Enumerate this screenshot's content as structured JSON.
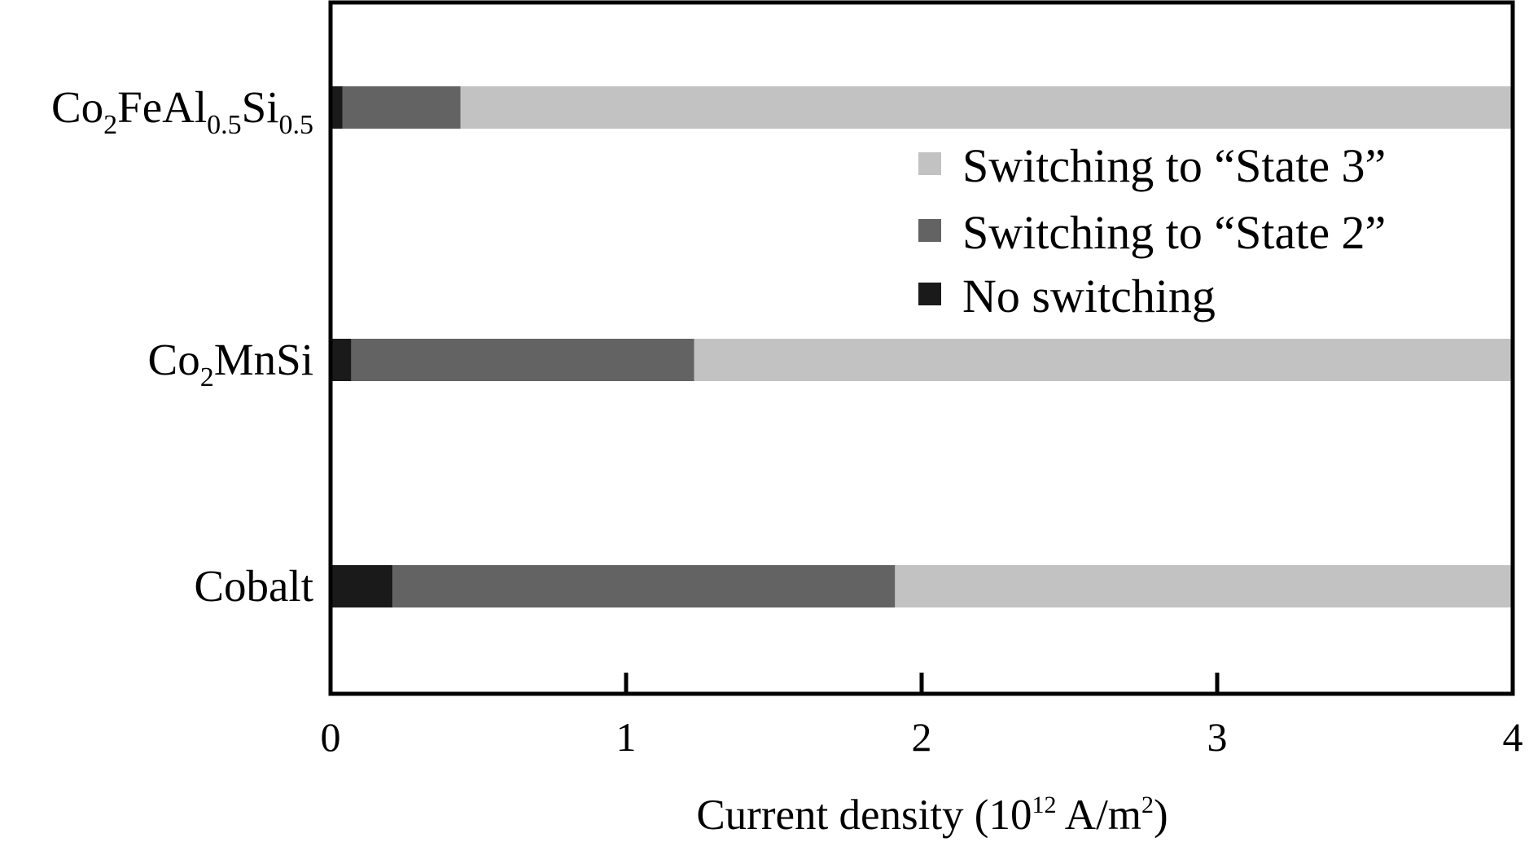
{
  "chart_data": {
    "type": "bar",
    "orientation": "horizontal",
    "stacked": true,
    "categories": [
      {
        "label": "Co2FeAl0.5Si0.5",
        "parts": [
          [
            "Co",
            ""
          ],
          [
            "2",
            "sub"
          ],
          [
            "FeAl",
            ""
          ],
          [
            "0.5",
            "sub"
          ],
          [
            "Si",
            ""
          ],
          [
            "0.5",
            "sub"
          ]
        ]
      },
      {
        "label": "Co2MnSi",
        "parts": [
          [
            "Co",
            ""
          ],
          [
            "2",
            "sub"
          ],
          [
            "MnSi",
            ""
          ]
        ]
      },
      {
        "label": "Cobalt",
        "parts": [
          [
            "Cobalt",
            ""
          ]
        ]
      }
    ],
    "series": [
      {
        "name": "No switching",
        "color": "#1a1a1a",
        "values": [
          0.04,
          0.07,
          0.21
        ]
      },
      {
        "name": "Switching to “State 2”",
        "color": "#636363",
        "values": [
          0.4,
          1.16,
          1.7
        ]
      },
      {
        "name": "Switching to “State 3”",
        "color": "#c2c2c2",
        "values": [
          3.56,
          2.77,
          2.09
        ]
      }
    ],
    "legend_order": [
      2,
      1,
      0
    ],
    "legend_position": "upper-right",
    "xlabel_parts": [
      [
        "Current density (10",
        ""
      ],
      [
        "12",
        "sup"
      ],
      [
        " A/m",
        ""
      ],
      [
        "2",
        "sup"
      ],
      [
        ")",
        ""
      ]
    ],
    "xlim": [
      0,
      4
    ],
    "xticks": [
      0,
      1,
      2,
      3,
      4
    ],
    "grid": false
  }
}
